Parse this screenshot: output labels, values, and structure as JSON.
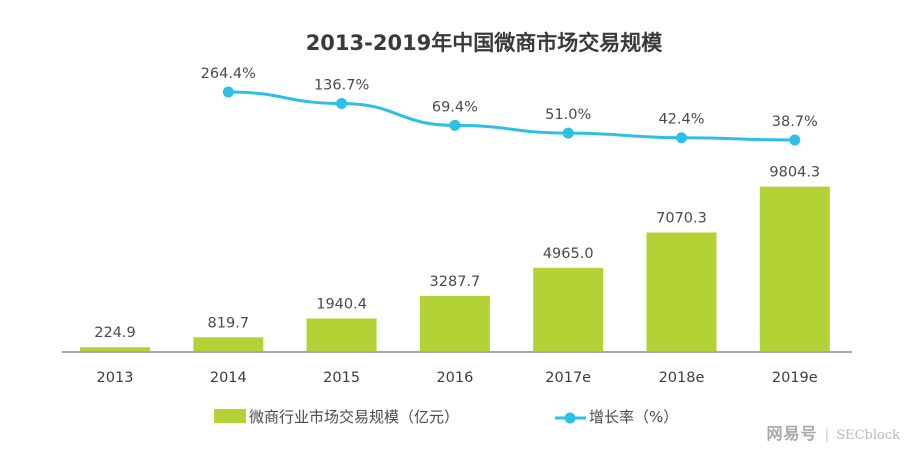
{
  "chart_data": {
    "type": "bar+line",
    "title": "2013-2019年中国微商市场交易规模",
    "categories": [
      "2013",
      "2014",
      "2015",
      "2016",
      "2017e",
      "2018e",
      "2019e"
    ],
    "series": [
      {
        "name": "微商行业市场交易规模（亿元）",
        "type": "bar",
        "color": "#b2d235",
        "values": [
          224.9,
          819.7,
          1940.4,
          3287.7,
          4965.0,
          7070.3,
          9804.3
        ],
        "labels": [
          "224.9",
          "819.7",
          "1940.4",
          "3287.7",
          "4965.0",
          "7070.3",
          "9804.3"
        ]
      },
      {
        "name": "增长率（%）",
        "type": "line",
        "color": "#2ebfe6",
        "values": [
          null,
          264.4,
          136.7,
          69.4,
          51.0,
          42.4,
          38.7
        ],
        "labels": [
          "",
          "264.4%",
          "136.7%",
          "69.4%",
          "51.0%",
          "42.4%",
          "38.7%"
        ]
      }
    ],
    "xlabel": "",
    "ylabel": "",
    "ylim": [
      0,
      10500
    ],
    "grid": false,
    "legend_position": "bottom"
  },
  "legend": {
    "bar_label": "微商行业市场交易规模（亿元）",
    "line_label": "增长率（%）"
  },
  "watermark": {
    "logo": "网易号",
    "separator": "|",
    "account": "SECblock"
  }
}
